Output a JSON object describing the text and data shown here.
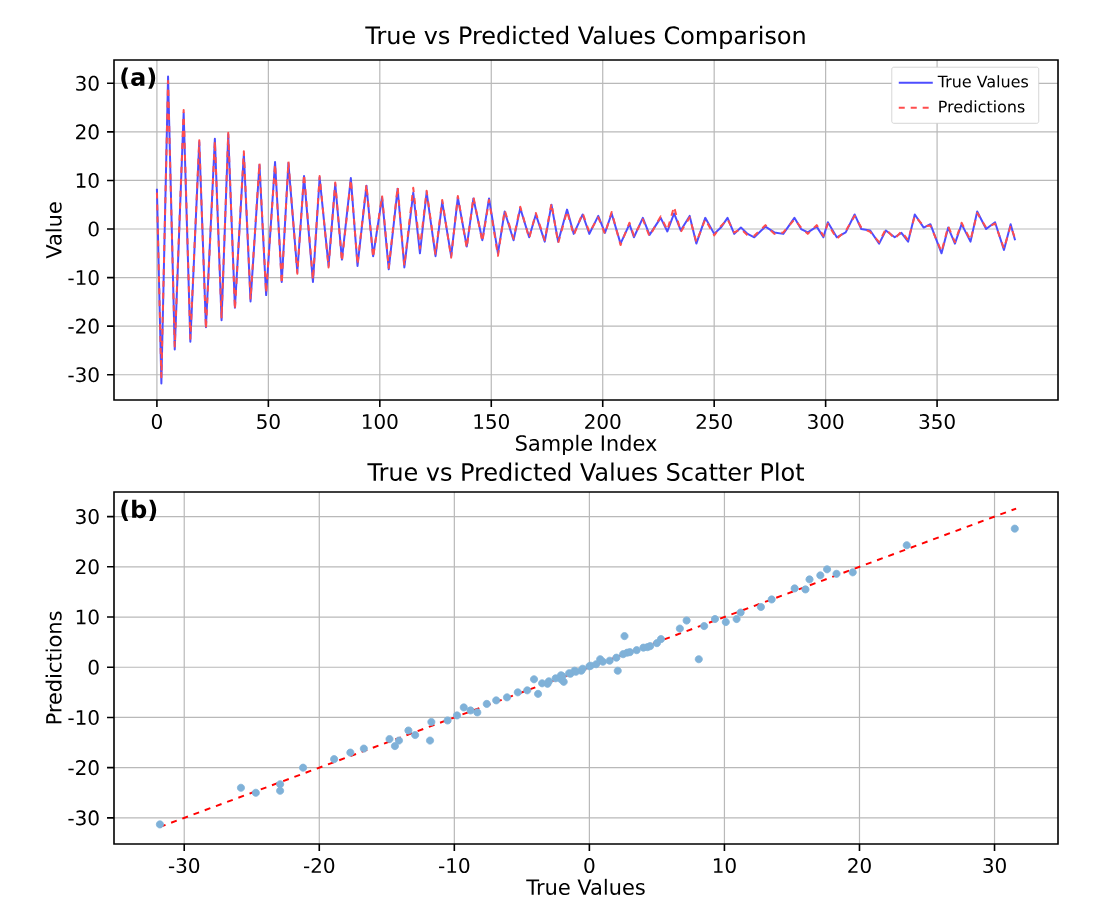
{
  "chart_data": [
    {
      "type": "line",
      "title": "True vs Predicted Values Comparison",
      "xlabel": "Sample Index",
      "ylabel": "Value",
      "annotations": [
        "(a)"
      ],
      "x": [
        0,
        2,
        5,
        8,
        12,
        15,
        19,
        22,
        26,
        29,
        32,
        35,
        39,
        42,
        46,
        49,
        53,
        56,
        59,
        63,
        66,
        70,
        73,
        77,
        80,
        83,
        87,
        90,
        94,
        97,
        101,
        104,
        108,
        111,
        115,
        118,
        121,
        125,
        128,
        132,
        135,
        139,
        142,
        146,
        149,
        153,
        156,
        160,
        163,
        167,
        170,
        174,
        177,
        180,
        184,
        187,
        191,
        194,
        198,
        201,
        204,
        208,
        212,
        214,
        218,
        221,
        226,
        229,
        232,
        235,
        239,
        242,
        246,
        250,
        253,
        256,
        259,
        262,
        265,
        268,
        273,
        277,
        281,
        286,
        289,
        292,
        296,
        299,
        301,
        305,
        309,
        313,
        316,
        320,
        324,
        327,
        331,
        334,
        337,
        340,
        344,
        347,
        352,
        355,
        358,
        361,
        365,
        368,
        372,
        376,
        380,
        383,
        385
      ],
      "series": [
        {
          "name": "True Values",
          "color": "#4d4dff",
          "line_style": "solid",
          "values": [
            8.3,
            -31.8,
            31.4,
            -24.8,
            23.9,
            -23.2,
            17.9,
            -20.2,
            18.6,
            -18.8,
            19.5,
            -16.2,
            15.5,
            -14.9,
            13.2,
            -13.6,
            13.8,
            -10.9,
            13.6,
            -8.9,
            10.9,
            -10.9,
            10.6,
            -7.6,
            9.3,
            -6.3,
            10.5,
            -7.6,
            8.9,
            -5.6,
            6.5,
            -8.3,
            8.3,
            -7.9,
            7.5,
            -5,
            7.6,
            -5.6,
            5.6,
            -5.6,
            6.5,
            -3.6,
            6.3,
            -2.3,
            6.3,
            -5,
            3.6,
            -2.3,
            4.3,
            -1.7,
            3,
            -2.6,
            5,
            -2.6,
            4,
            -1,
            3,
            -1,
            2.7,
            -0.8,
            3.2,
            -3,
            1,
            -1.7,
            2.3,
            -1.2,
            2.3,
            -0.5,
            3.2,
            -0.3,
            2.7,
            -3,
            2.3,
            -1,
            0.3,
            2.3,
            -1,
            0.3,
            -1,
            -1.7,
            0.5,
            -0.7,
            -1,
            2.3,
            0,
            -0.7,
            0.5,
            -1.7,
            1.4,
            -1.7,
            -0.7,
            3,
            0,
            -0.3,
            -3,
            -0.3,
            -1.7,
            -0.8,
            -2.6,
            3,
            0.3,
            1,
            -5,
            0.3,
            -3,
            1,
            -2.6,
            3.6,
            0,
            1.4,
            -4.3,
            1,
            -2.3
          ]
        },
        {
          "name": "Predictions",
          "color": "#ff4d4d",
          "line_style": "dashed",
          "values": [
            7.5,
            -30.5,
            30.5,
            -24.2,
            24.5,
            -22.6,
            18.3,
            -20.6,
            18.2,
            -18.4,
            19.8,
            -16.6,
            16,
            -14.5,
            13.6,
            -13.2,
            13.4,
            -11.3,
            13.9,
            -9.2,
            11.3,
            -10.5,
            10.9,
            -7.9,
            9.6,
            -6.7,
            10.2,
            -7.3,
            9.2,
            -5.9,
            6.9,
            -8,
            8.7,
            -7.6,
            8.5,
            -4,
            7.9,
            -5.3,
            6,
            -5.9,
            6.8,
            -3.9,
            6.6,
            -2.6,
            6,
            -5.5,
            3.9,
            -2,
            4.6,
            -1.9,
            3.3,
            -2.3,
            5.3,
            -2.9,
            3.7,
            -1.3,
            3.3,
            -0.7,
            2.4,
            -1,
            3.5,
            -3.3,
            1.3,
            -1.4,
            2,
            -1.5,
            2.6,
            -0.2,
            4.6,
            -0.6,
            2.4,
            -2.7,
            2,
            -1.3,
            0.6,
            2,
            -0.7,
            0,
            -1.3,
            -1.4,
            0.8,
            -1,
            -0.7,
            2,
            0.3,
            -1,
            0.8,
            -1.4,
            1.1,
            -2,
            -0.4,
            2.7,
            0.3,
            -0.6,
            -2.7,
            0,
            -2,
            -0.5,
            -2.3,
            2.7,
            0.6,
            0.7,
            -4.7,
            0.6,
            -2.7,
            1.3,
            -2.3,
            3.3,
            0.3,
            1.1,
            -4,
            0.7,
            -2
          ]
        }
      ],
      "xlim": [
        -19.25,
        404.25
      ],
      "ylim": [
        -35.2,
        34.8
      ],
      "xticks": [
        0,
        50,
        100,
        150,
        200,
        250,
        300,
        350
      ],
      "yticks": [
        -30,
        -20,
        -10,
        0,
        10,
        20,
        30
      ],
      "grid": true,
      "legend": "top right",
      "marker": "none"
    },
    {
      "type": "scatter",
      "title": "True vs Predicted Values Scatter Plot",
      "xlabel": "True Values",
      "ylabel": "Predictions",
      "annotations": [
        "(b)"
      ],
      "series": [
        {
          "type": "scatter",
          "color": "#7fb1d8",
          "x": [
            -31.8,
            -25.8,
            -24.7,
            -22.9,
            -22.9,
            -21.2,
            -18.9,
            -17.7,
            -16.7,
            -14.8,
            -14.4,
            -14.1,
            -13.4,
            -12.9,
            -11.7,
            -11.8,
            -10.5,
            -9.8,
            -9.3,
            -8.8,
            -8.3,
            -7.6,
            -6.9,
            -6.1,
            -5.3,
            -4.6,
            -4.1,
            -3.8,
            -3.1,
            -2.1,
            -1.4,
            -0.6,
            0.1,
            -2.1,
            -1.9,
            -1.1,
            0.8,
            2.1,
            2.6,
            2.8,
            4.3,
            5.3,
            6.7,
            7.2,
            8.1,
            8.5,
            9.3,
            10.1,
            10.9,
            11.2,
            12.7,
            13.5,
            15.2,
            16,
            16.3,
            17.1,
            17.6,
            18.3,
            19.5,
            23.5,
            31.5,
            -3.5,
            -3,
            -2.5,
            -2,
            -1.5,
            -1,
            -0.5,
            0,
            0.5,
            1,
            1.5,
            2,
            2.5,
            3,
            3.5,
            4,
            4.5,
            5
          ],
          "values": [
            -31.3,
            -24,
            -25,
            -23.3,
            -24.6,
            -20,
            -18.3,
            -17,
            -16.2,
            -14.3,
            -15.7,
            -14.6,
            -12.6,
            -13.5,
            -10.9,
            -14.6,
            -10.6,
            -9.6,
            -8,
            -8.6,
            -9,
            -7.3,
            -6.6,
            -6,
            -5,
            -4.6,
            -2.4,
            -5.3,
            -3.3,
            -2.4,
            -1.3,
            -0.7,
            0.3,
            -1.6,
            -2.9,
            -0.7,
            1.6,
            -0.7,
            6.2,
            2.9,
            4,
            5.6,
            7.7,
            9.3,
            1.6,
            8.2,
            9.6,
            9,
            9.6,
            10.9,
            12,
            13.5,
            15.7,
            15.5,
            17.5,
            18.3,
            19.5,
            18.6,
            18.9,
            24.3,
            27.6,
            -3.2,
            -2.8,
            -2.2,
            -1.8,
            -1.2,
            -0.9,
            -0.3,
            0.2,
            0.6,
            1.1,
            1.3,
            1.9,
            2.6,
            3,
            3.4,
            3.9,
            4.2,
            4.8
          ]
        },
        {
          "type": "line",
          "color": "#ff0000",
          "line_style": "dashed",
          "x": [
            -31.8,
            31.6
          ],
          "values": [
            -31.8,
            31.6
          ]
        }
      ],
      "xlim": [
        -35.2,
        34.7
      ],
      "ylim": [
        -35.2,
        34.9
      ],
      "xticks": [
        -30,
        -20,
        -10,
        0,
        10,
        20,
        30
      ],
      "yticks": [
        -30,
        -20,
        -10,
        0,
        10,
        20,
        30
      ],
      "grid": true
    }
  ]
}
